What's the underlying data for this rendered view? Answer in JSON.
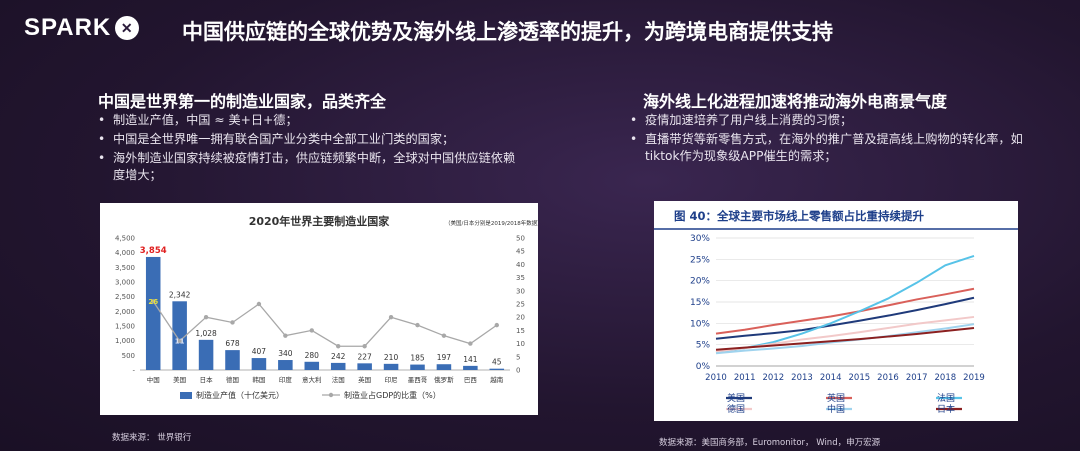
{
  "logo": {
    "text": "SPARK",
    "icon": "spark-x-icon"
  },
  "title": "中国供应链的全球优势及海外线上渗透率的提升，为跨境电商提供支持",
  "left": {
    "heading": "中国是世界第一的制造业国家，品类齐全",
    "bullets": [
      "制造业产值，中国 ≈ 美+日+德；",
      "中国是全世界唯一拥有联合国产业分类中全部工业门类的国家；",
      "海外制造业国家持续被疫情打击，供应链频繁中断，全球对中国供应链依赖度增大；"
    ],
    "source": "数据来源： 世界银行"
  },
  "right": {
    "heading": "海外线上化进程加速将推动海外电商景气度",
    "bullets": [
      "疫情加速培养了用户线上消费的习惯；",
      "直播带货等新零售方式，在海外的推广普及提高线上购物的转化率，如tiktok作为现象级APP催生的需求；"
    ],
    "source": "数据来源：美国商务部，Euromonitor， Wind，申万宏源"
  },
  "chart_data": [
    {
      "type": "bar",
      "title": "2020年世界主要制造业国家",
      "subtitle": "（美国/日本分别是2019/2018年数据）",
      "categories": [
        "中国",
        "美国",
        "日本",
        "德国",
        "韩国",
        "印度",
        "意大利",
        "法国",
        "英国",
        "印尼",
        "墨西哥",
        "俄罗斯",
        "巴西",
        "越南"
      ],
      "series": [
        {
          "name": "制造业产值（十亿美元）",
          "type": "bar",
          "axis": "left",
          "color": "#3a6db5",
          "values": [
            3854,
            2342,
            1028,
            678,
            407,
            340,
            280,
            242,
            227,
            210,
            185,
            197,
            141,
            45
          ],
          "labels": [
            "3,854",
            "2,342",
            "1,028",
            "678",
            "407",
            "340",
            "280",
            "242",
            "227",
            "210",
            "185",
            "197",
            "141",
            "45"
          ]
        },
        {
          "name": "制造业占GDP的比重（%）",
          "type": "line",
          "axis": "right",
          "color": "#a8a8a8",
          "values": [
            26,
            11,
            20,
            18,
            25,
            13,
            15,
            9,
            9,
            20,
            17,
            13,
            10,
            17
          ]
        }
      ],
      "y_left": {
        "min": 0,
        "max": 4500,
        "ticks": [
          "-",
          "500",
          "1,000",
          "1,500",
          "2,000",
          "2,500",
          "3,000",
          "3,500",
          "4,000",
          "4,500"
        ]
      },
      "y_right": {
        "min": 0,
        "max": 50,
        "ticks": [
          "0",
          "5",
          "10",
          "15",
          "20",
          "25",
          "30",
          "35",
          "40",
          "45",
          "50"
        ]
      },
      "annotations": [
        {
          "series": 1,
          "index": 0,
          "text": "26"
        },
        {
          "series": 1,
          "index": 1,
          "text": "11"
        }
      ],
      "highlight_color": "#e02020",
      "legend_position": "bottom",
      "grid": false
    },
    {
      "type": "line",
      "title": "图 40：全球主要市场线上零售额占比重持续提升",
      "x": [
        "2010",
        "2011",
        "2012",
        "2013",
        "2014",
        "2015",
        "2016",
        "2017",
        "2018",
        "2019"
      ],
      "ylim": [
        0,
        30
      ],
      "y_ticks": [
        "0%",
        "5%",
        "10%",
        "15%",
        "20%",
        "25%",
        "30%"
      ],
      "series": [
        {
          "name": "美国",
          "color": "#1f3a7a",
          "values": [
            6.4,
            7.1,
            7.7,
            8.4,
            9.5,
            10.6,
            11.8,
            13.1,
            14.5,
            16.0
          ]
        },
        {
          "name": "英国",
          "color": "#d9605a",
          "values": [
            7.6,
            8.5,
            9.6,
            10.6,
            11.6,
            12.8,
            14.2,
            15.6,
            16.8,
            18.1
          ]
        },
        {
          "name": "法国",
          "color": "#57c3e8",
          "values": [
            3.2,
            4.2,
            5.6,
            7.6,
            10.0,
            12.8,
            15.8,
            19.5,
            23.6,
            25.8
          ]
        },
        {
          "name": "德国",
          "color": "#f2c9c9",
          "values": [
            3.4,
            4.2,
            5.2,
            6.2,
            7.0,
            7.9,
            8.9,
            9.9,
            10.7,
            11.5
          ]
        },
        {
          "name": "中国",
          "color": "#9fd3ee",
          "values": [
            3.0,
            3.6,
            4.1,
            4.7,
            5.5,
            6.2,
            7.0,
            7.9,
            8.8,
            9.8
          ]
        },
        {
          "name": "日本",
          "color": "#8b2020",
          "values": [
            3.8,
            4.3,
            4.8,
            5.3,
            5.8,
            6.3,
            6.9,
            7.5,
            8.2,
            8.9
          ]
        }
      ],
      "legend_position": "bottom",
      "grid": true
    }
  ]
}
